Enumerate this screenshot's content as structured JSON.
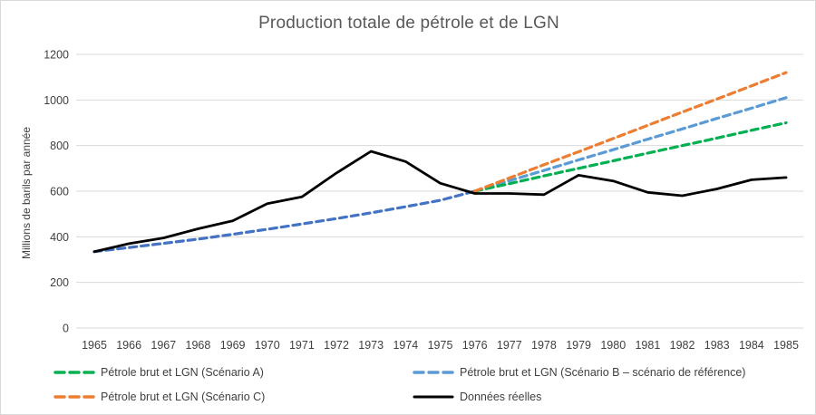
{
  "chart_data": {
    "type": "line",
    "title": "Production totale de pétrole et de LGN",
    "xlabel": "",
    "ylabel": "Millions de barils par année",
    "x": [
      1965,
      1966,
      1967,
      1968,
      1969,
      1970,
      1971,
      1972,
      1973,
      1974,
      1975,
      1976,
      1977,
      1978,
      1979,
      1980,
      1981,
      1982,
      1983,
      1984,
      1985
    ],
    "ylim": [
      0,
      1200
    ],
    "ytick_interval": 200,
    "grid": "horizontal-only",
    "gridline_color": "#d9d9d9",
    "legend_position": "bottom",
    "series": [
      {
        "name": "Pétrole brut et LGN (Scénario A)",
        "color": "#00B050",
        "style": "dashed",
        "values": [
          null,
          null,
          null,
          null,
          null,
          null,
          null,
          null,
          null,
          null,
          null,
          600,
          633,
          667,
          700,
          733,
          767,
          800,
          833,
          867,
          900
        ]
      },
      {
        "name": "Pétrole brut et LGN (Scénario B – scénario de référence)",
        "color": "#5B9BD5",
        "style": "dashed",
        "historical_color": "#4472C4",
        "historical_until": 1976,
        "values": [
          335,
          353,
          371,
          390,
          411,
          433,
          456,
          480,
          505,
          532,
          560,
          600,
          646,
          691,
          737,
          782,
          828,
          873,
          919,
          964,
          1010
        ]
      },
      {
        "name": "Pétrole brut et LGN (Scénario C)",
        "color": "#ED7D31",
        "style": "dashed",
        "values": [
          null,
          null,
          null,
          null,
          null,
          null,
          null,
          null,
          null,
          null,
          null,
          600,
          658,
          716,
          773,
          831,
          889,
          947,
          1004,
          1062,
          1120
        ]
      },
      {
        "name": "Données réelles",
        "color": "#000000",
        "style": "solid",
        "values": [
          335,
          370,
          395,
          435,
          470,
          545,
          575,
          680,
          775,
          730,
          635,
          590,
          590,
          585,
          670,
          645,
          595,
          580,
          610,
          650,
          660
        ]
      }
    ]
  }
}
